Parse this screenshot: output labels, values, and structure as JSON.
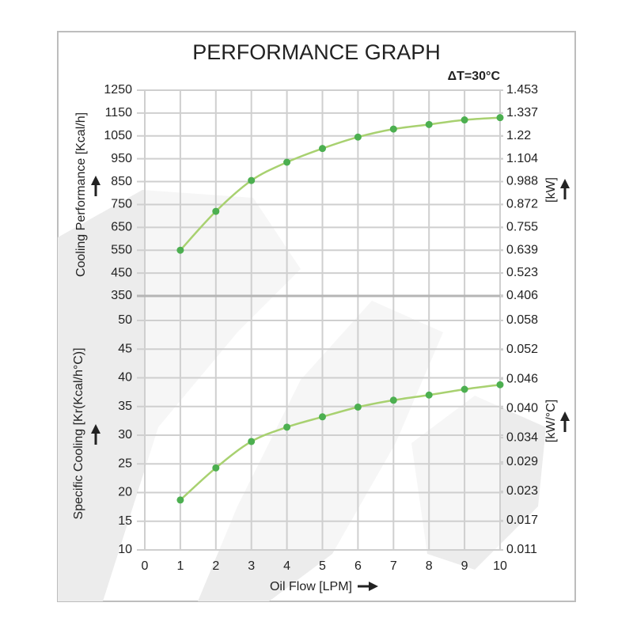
{
  "chart_data": [
    {
      "type": "line",
      "title": "PERFORMANCE GRAPH",
      "annotation": "ΔT=30°C",
      "y_label": "Cooling Performance [Kcal/h]",
      "y2_label": "[kW]",
      "x": [
        1,
        2,
        3,
        4,
        5,
        6,
        7,
        8,
        9,
        10
      ],
      "series": [
        {
          "values": [
            550,
            720,
            855,
            935,
            995,
            1045,
            1080,
            1100,
            1120,
            1130
          ],
          "color": "#a8d170",
          "marker_color": "#4caf50"
        }
      ],
      "ylim": [
        350,
        1250
      ],
      "yticks": [
        350,
        450,
        550,
        650,
        750,
        850,
        950,
        1050,
        1150,
        1250
      ],
      "y2lim": [
        0.406,
        1.453
      ],
      "y2ticks": [
        0.406,
        0.523,
        0.639,
        0.755,
        0.872,
        0.988,
        1.104,
        1.22,
        1.337,
        1.453
      ],
      "grid": true
    },
    {
      "type": "line",
      "x_label": "Oil Flow [LPM]",
      "y_label": "Specific Cooling [Kr(Kcal/h°C)]",
      "y2_label": "[kW/°C]",
      "x": [
        1,
        2,
        3,
        4,
        5,
        6,
        7,
        8,
        9,
        10
      ],
      "series": [
        {
          "values": [
            18.7,
            24.3,
            28.9,
            31.4,
            33.2,
            34.9,
            36.1,
            37.0,
            38.0,
            38.8
          ],
          "color": "#a8d170",
          "marker_color": "#4caf50"
        }
      ],
      "xlim": [
        0,
        10
      ],
      "xticks": [
        0,
        1,
        2,
        3,
        4,
        5,
        6,
        7,
        8,
        9,
        10
      ],
      "ylim": [
        10,
        50
      ],
      "yticks": [
        10,
        15,
        20,
        25,
        30,
        35,
        40,
        45,
        50
      ],
      "y2lim": [
        0.011,
        0.058
      ],
      "y2ticks": [
        0.011,
        0.017,
        0.023,
        0.029,
        0.034,
        {
          "value": 0.04,
          "label": "0.040"
        },
        0.046,
        0.052,
        0.058
      ],
      "grid": true
    }
  ]
}
